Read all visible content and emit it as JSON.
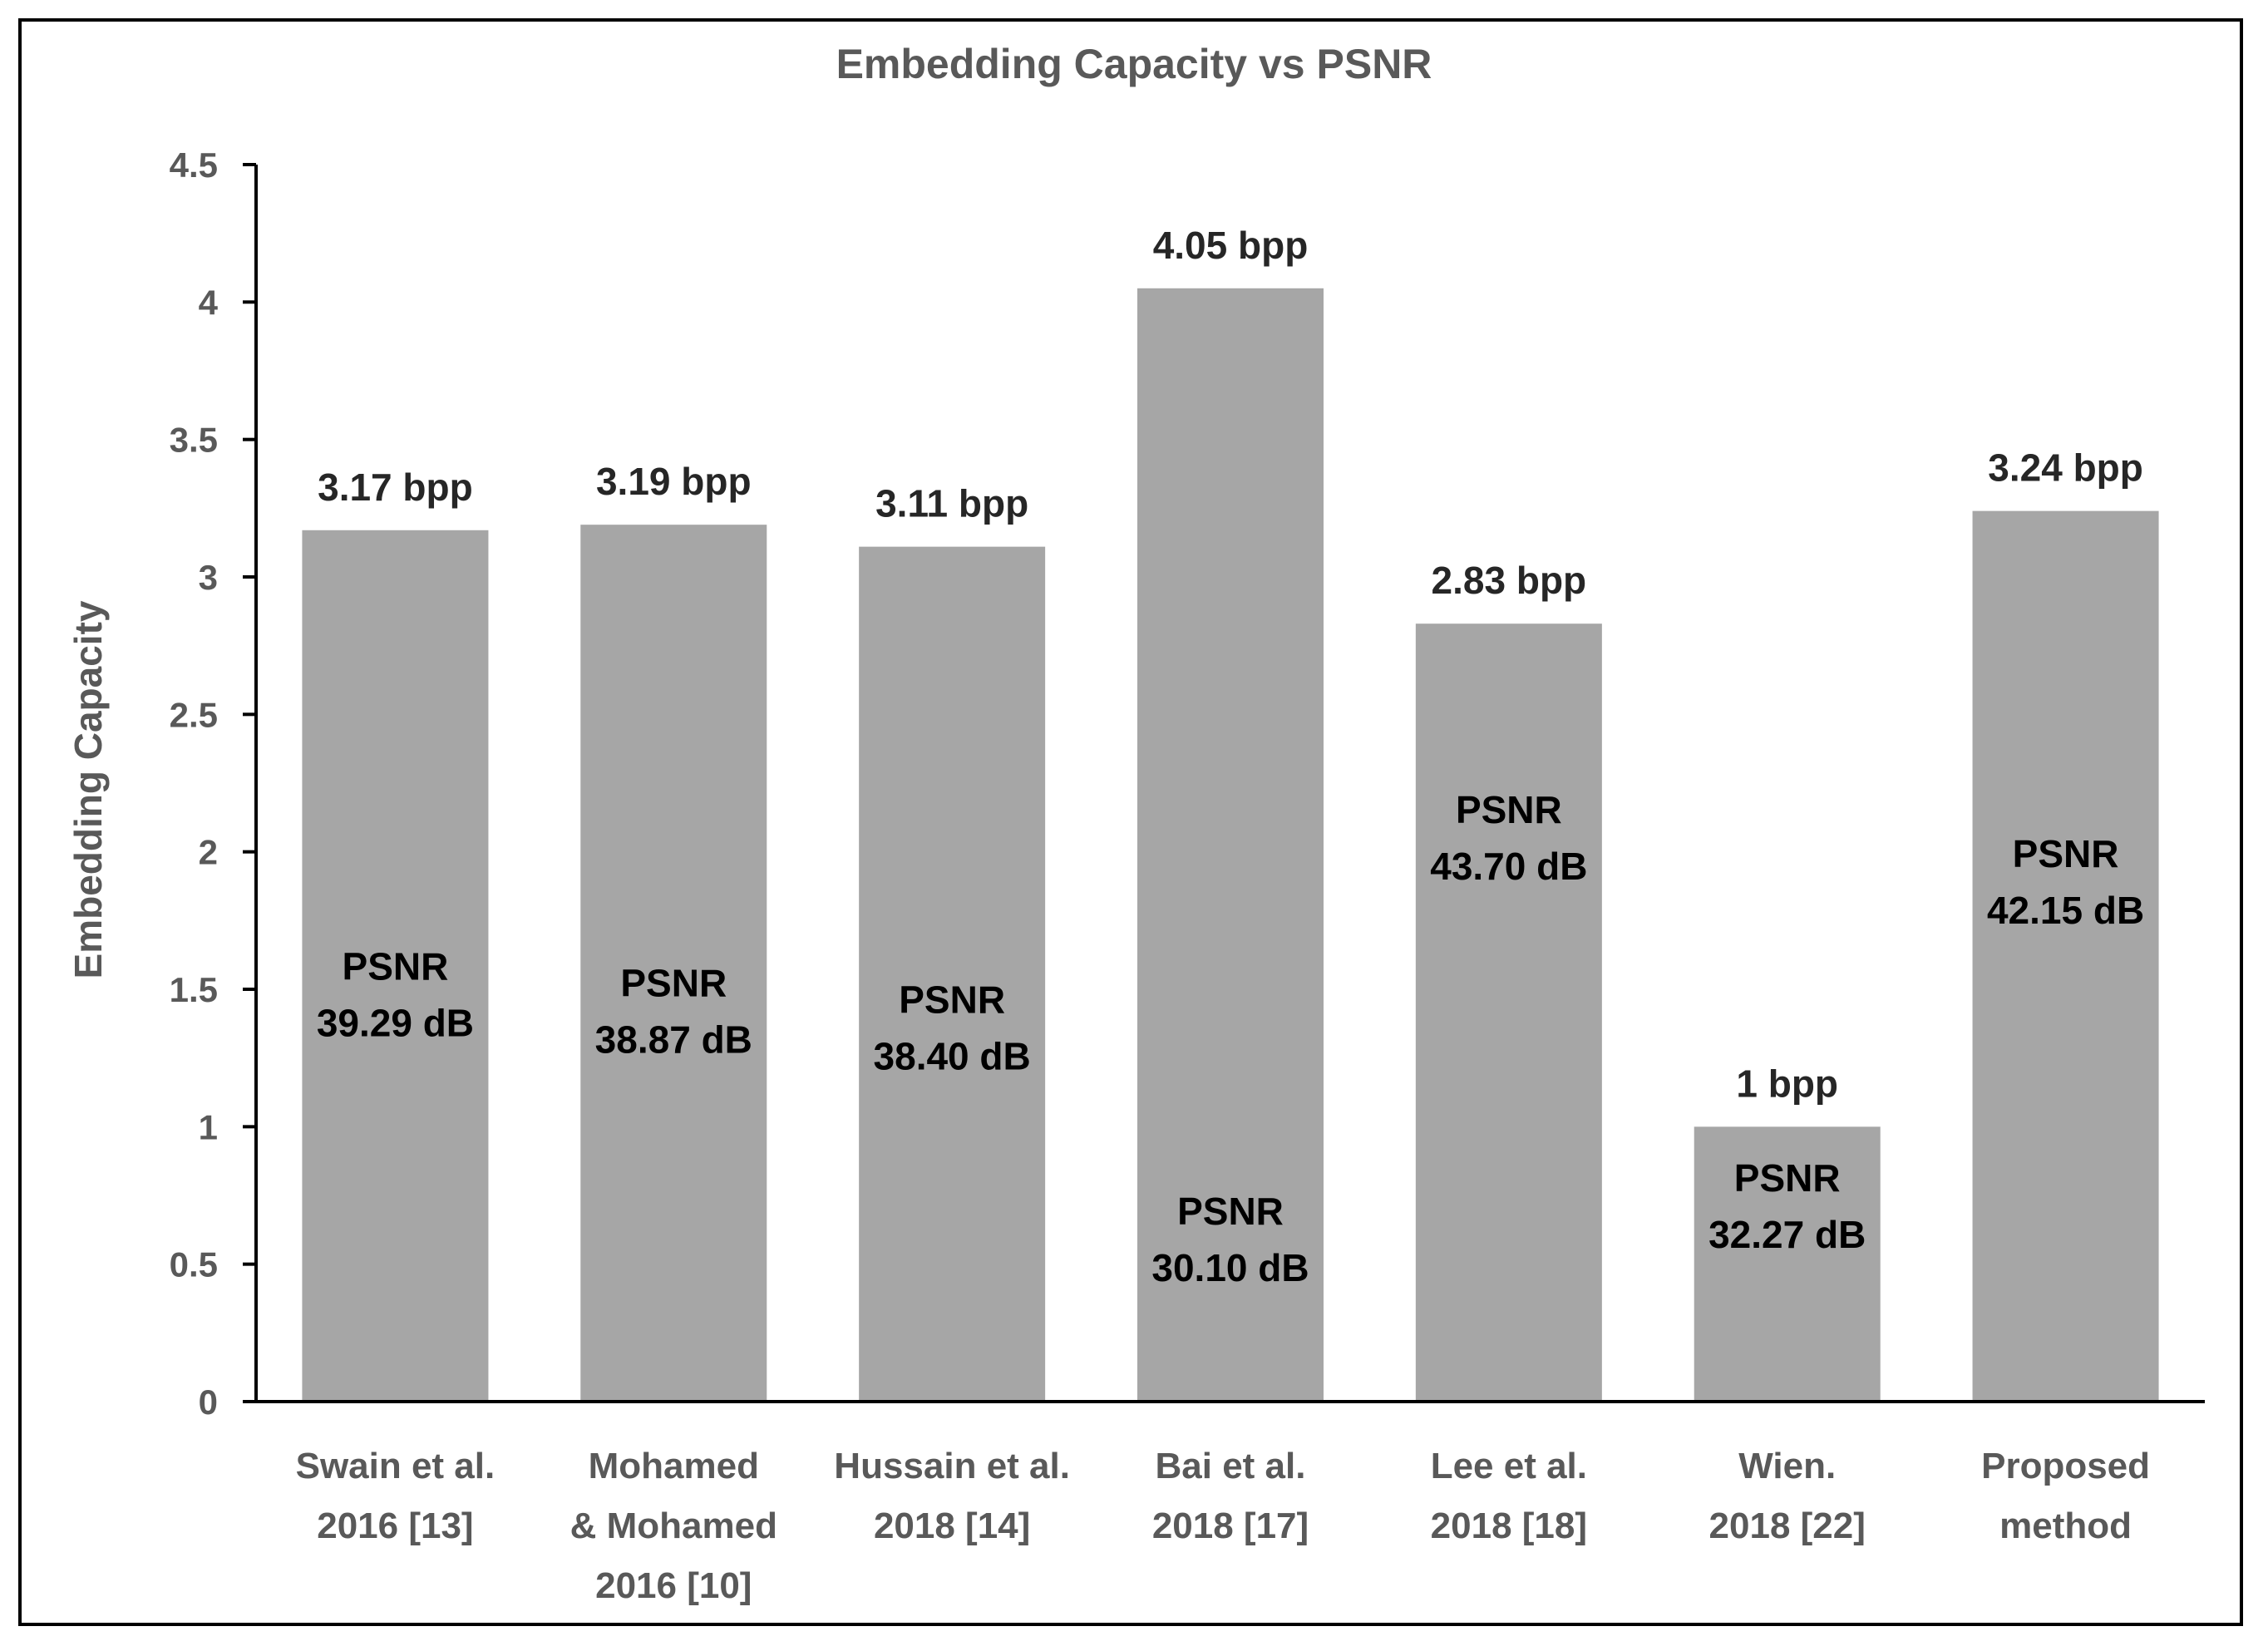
{
  "chart_data": {
    "type": "bar",
    "title": "Embedding Capacity vs PSNR",
    "xlabel": "",
    "ylabel": "Embedding Capacity",
    "ylim": [
      0,
      4.5
    ],
    "yticks": [
      "0",
      "0.5",
      "1",
      "1.5",
      "2",
      "2.5",
      "3",
      "3.5",
      "4",
      "4.5"
    ],
    "bar_color": "#a6a6a6",
    "grid": false,
    "categories": [
      [
        "Swain et al.",
        "2016 [13]"
      ],
      [
        "Mohamed",
        "& Mohamed",
        "2016 [10]"
      ],
      [
        "Hussain et al.",
        "2018 [14]"
      ],
      [
        "Bai et al.",
        "2018 [17]"
      ],
      [
        "Lee et al.",
        "2018 [18]"
      ],
      [
        "Wien.",
        "2018 [22]"
      ],
      [
        "Proposed",
        "method"
      ]
    ],
    "values": [
      3.17,
      3.19,
      3.11,
      4.05,
      2.83,
      1,
      3.24
    ],
    "value_labels": [
      "3.17 bpp",
      "3.19 bpp",
      "3.11 bpp",
      "4.05 bpp",
      "2.83 bpp",
      "1 bpp",
      "3.24 bpp"
    ],
    "psnr_labels": [
      [
        "PSNR",
        "39.29 dB"
      ],
      [
        "PSNR",
        "38.87 dB"
      ],
      [
        "PSNR",
        "38.40 dB"
      ],
      [
        "PSNR",
        "30.10 dB"
      ],
      [
        "PSNR",
        "43.70 dB"
      ],
      [
        "PSNR",
        "32.27 dB"
      ],
      [
        "PSNR",
        "42.15 dB"
      ]
    ],
    "psnr_positions": [
      1.48,
      1.42,
      1.36,
      0.59,
      2.05,
      0.71,
      1.89
    ]
  }
}
